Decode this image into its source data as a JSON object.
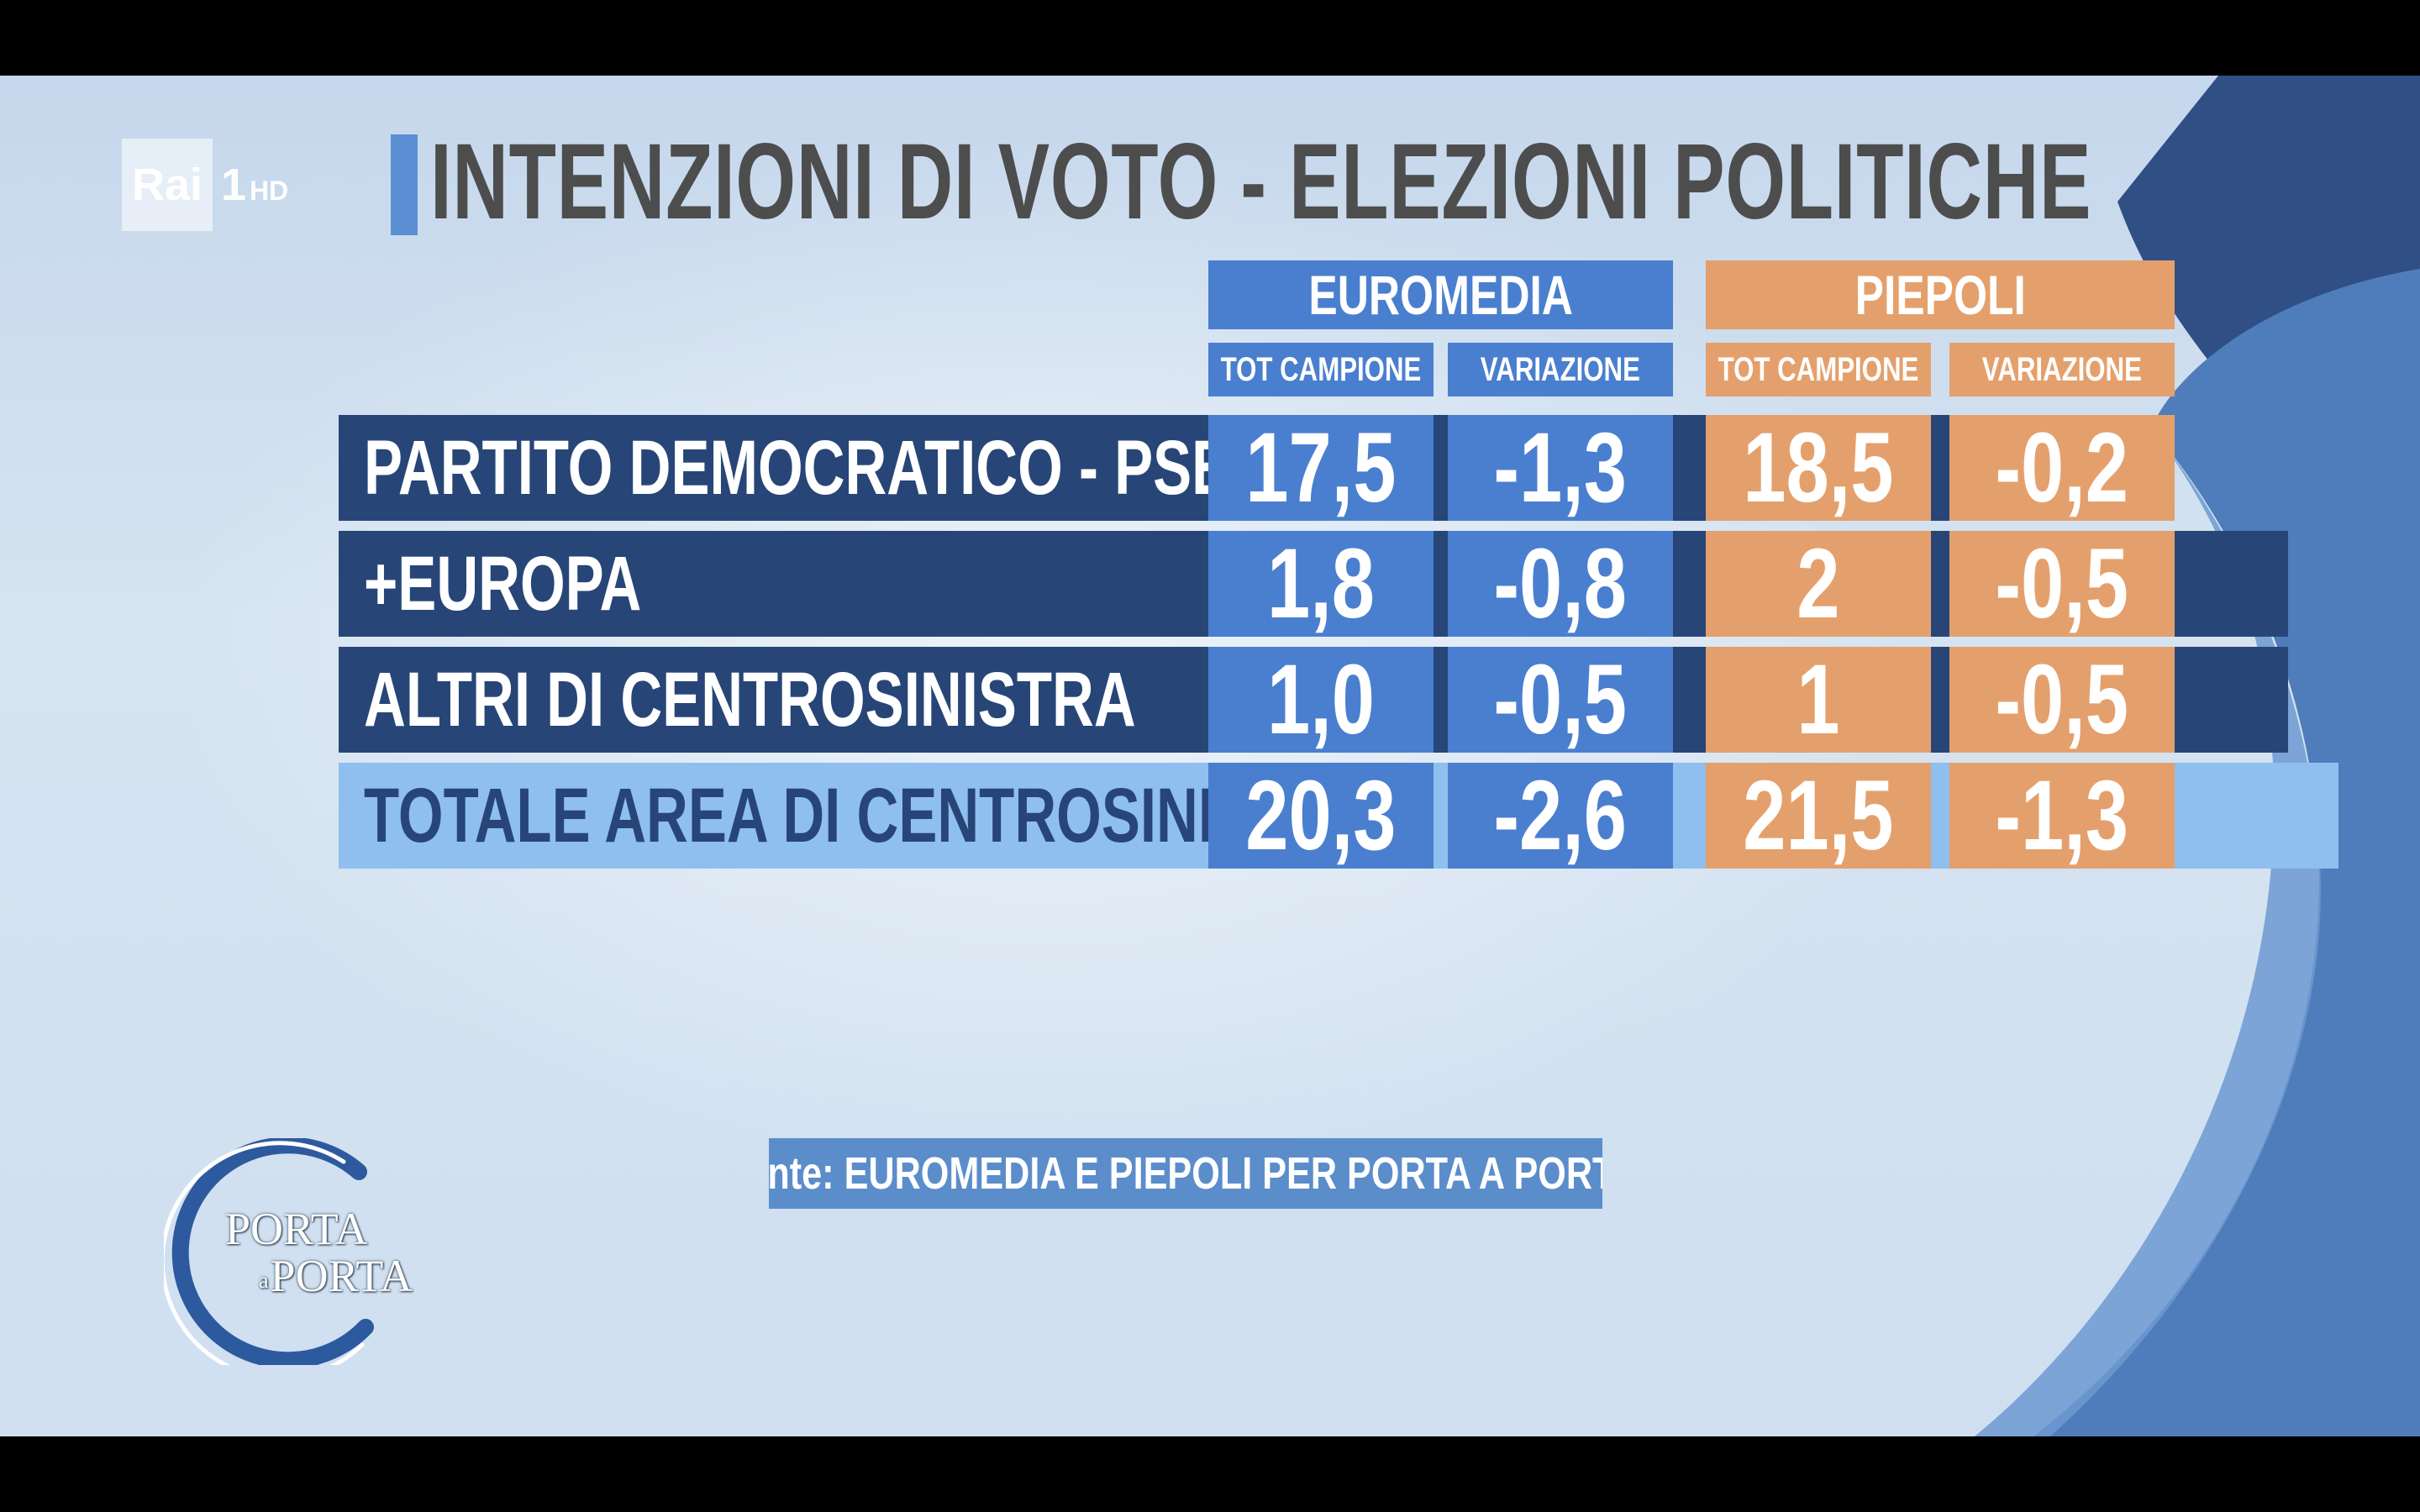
{
  "broadcaster": {
    "name": "Rai",
    "channel": "1",
    "quality": "HD"
  },
  "title": "INTENZIONI DI VOTO - ELEZIONI POLITICHE",
  "source": "fonte: EUROMEDIA E PIEPOLI PER PORTA A PORTA",
  "show_logo": {
    "line1": "PORTA",
    "joiner": "a",
    "line2": "PORTA"
  },
  "colors": {
    "euromedia": "#4a7fcf",
    "piepoli": "#e4a06c",
    "row_dark": "#274677",
    "row_total": "#8fbfef",
    "title_text": "#4d4d4d",
    "total_label_text": "#274677"
  },
  "chart_data": {
    "type": "table",
    "title": "INTENZIONI DI VOTO - ELEZIONI POLITICHE",
    "groups": [
      {
        "name": "EUROMEDIA",
        "columns": [
          "TOT CAMPIONE",
          "VARIAZIONE"
        ]
      },
      {
        "name": "PIEPOLI",
        "columns": [
          "TOT CAMPIONE",
          "VARIAZIONE"
        ]
      }
    ],
    "rows": [
      {
        "label": "PARTITO DEMOCRATICO - PSE",
        "values": [
          "17,5",
          "-1,3",
          "18,5",
          "-0,2"
        ]
      },
      {
        "label": "+EUROPA",
        "values": [
          "1,8",
          "-0,8",
          "2",
          "-0,5"
        ]
      },
      {
        "label": "ALTRI DI CENTROSINISTRA",
        "values": [
          "1,0",
          "-0,5",
          "1",
          "-0,5"
        ]
      },
      {
        "label": "TOTALE AREA DI CENTROSINISTRA",
        "values": [
          "20,3",
          "-2,6",
          "21,5",
          "-1,3"
        ],
        "total": true
      }
    ]
  }
}
